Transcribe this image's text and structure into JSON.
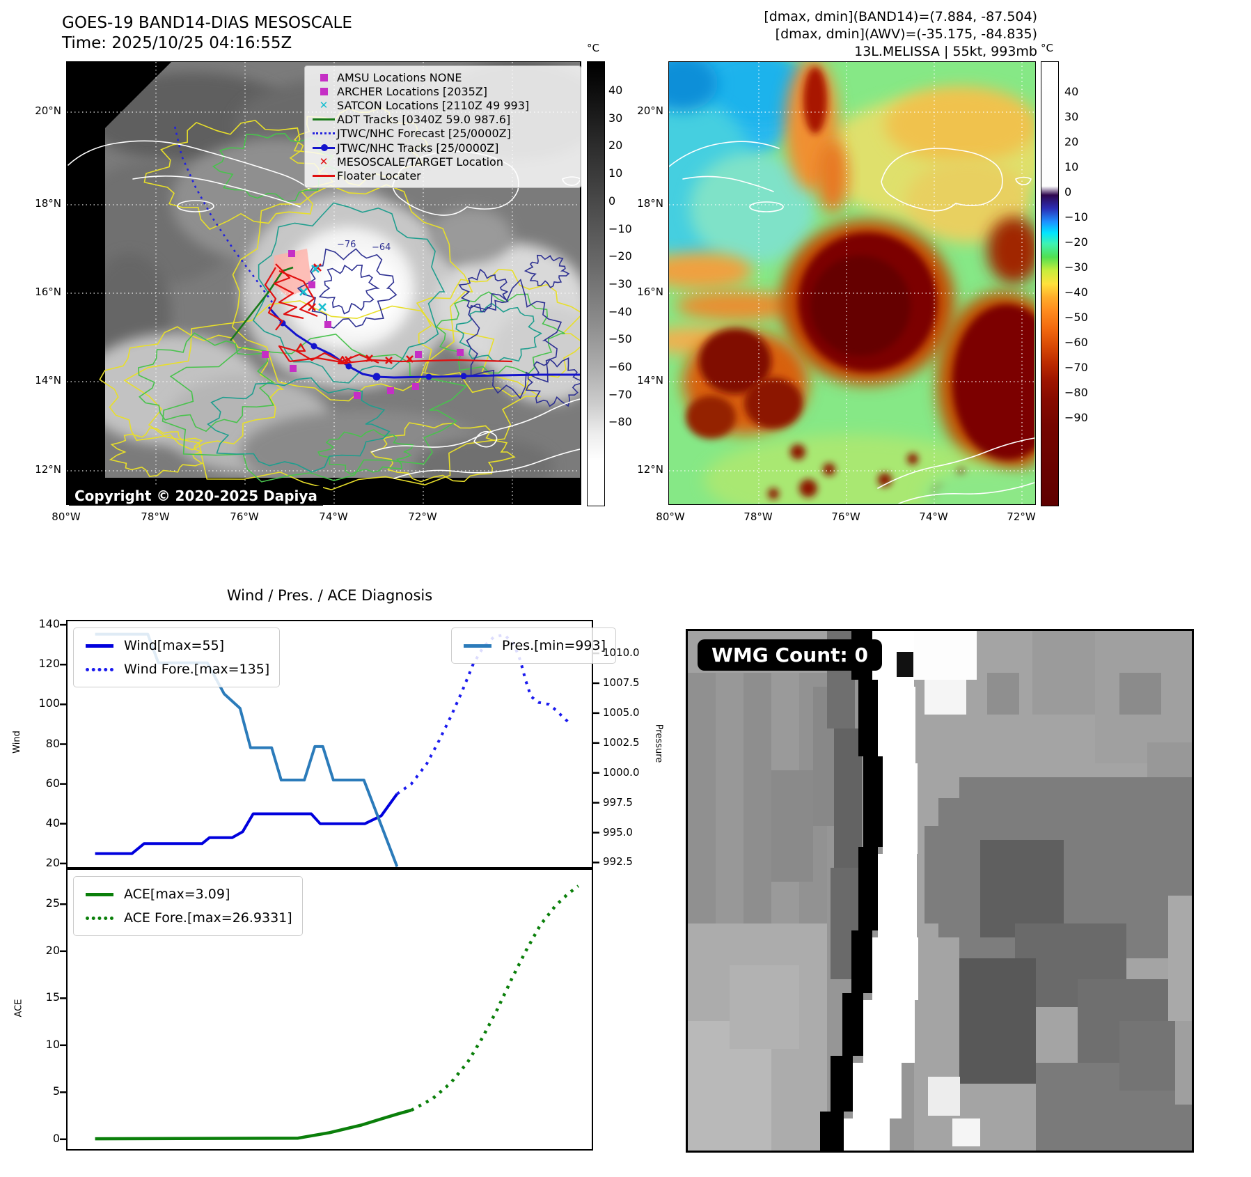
{
  "panel1": {
    "title_line1": "GOES-19 BAND14-DIAS MESOSCALE",
    "title_line2": "Time: 2025/10/25 04:16:55Z",
    "copyright": "Copyright © 2020-2025 Dapiya",
    "lat_ticks": [
      "20°N",
      "18°N",
      "16°N",
      "14°N",
      "12°N"
    ],
    "lon_ticks": [
      "80°W",
      "78°W",
      "76°W",
      "74°W",
      "72°W"
    ],
    "colorbar": {
      "unit": "°C",
      "ticks": [
        "40",
        "30",
        "20",
        "10",
        "0",
        "−10",
        "−20",
        "−30",
        "−40",
        "−50",
        "−60",
        "−70",
        "−80"
      ]
    },
    "contour_labels": [
      "−76",
      "−64"
    ],
    "legend": [
      {
        "marker": "sq-magenta",
        "label": "AMSU Locations NONE"
      },
      {
        "marker": "sq-magenta",
        "label": "ARCHER Locations [2035Z]"
      },
      {
        "marker": "x-cyan",
        "label": "SATCON Locations [2110Z 49 993]"
      },
      {
        "marker": "line-green",
        "label": "ADT Tracks [0340Z 59.0 987.6]"
      },
      {
        "marker": "dot-blue",
        "label": "JTWC/NHC Forecast [25/0000Z]"
      },
      {
        "marker": "linedot-blue",
        "label": "JTWC/NHC Tracks [25/0000Z]"
      },
      {
        "marker": "x-red",
        "label": "MESOSCALE/TARGET Location"
      },
      {
        "marker": "line-red",
        "label": "Floater Locater"
      }
    ]
  },
  "panel2": {
    "header_line1": "[dmax, dmin](BAND14)=(7.884, -87.504)",
    "header_line2": "[dmax, dmin](AWV)=(-35.175, -84.835)",
    "header_line3": "13L.MELISSA | 55kt, 993mb",
    "lat_ticks": [
      "20°N",
      "18°N",
      "16°N",
      "14°N",
      "12°N"
    ],
    "lon_ticks": [
      "80°W",
      "78°W",
      "76°W",
      "74°W",
      "72°W"
    ],
    "colorbar": {
      "unit": "°C",
      "ticks": [
        "40",
        "30",
        "20",
        "10",
        "0",
        "−10",
        "−20",
        "−30",
        "−40",
        "−50",
        "−60",
        "−70",
        "−80",
        "−90"
      ]
    }
  },
  "chart_data": [
    {
      "type": "line",
      "title": "Wind / Pres. / ACE Diagnosis",
      "ylabel_left": "Wind",
      "ylabel_right": "Pressure",
      "yticks_left": [
        "140",
        "120",
        "100",
        "80",
        "60",
        "40",
        "20"
      ],
      "yticks_left_values": [
        140,
        120,
        100,
        80,
        60,
        40,
        20
      ],
      "ylim_left": [
        17.5,
        142.5
      ],
      "yticks_right": [
        "1010.0",
        "1007.5",
        "1005.0",
        "1002.5",
        "1000.0",
        "997.5",
        "995.0",
        "992.5"
      ],
      "yticks_right_values": [
        1010.0,
        1007.5,
        1005.0,
        1002.5,
        1000.0,
        997.5,
        995.0,
        992.5
      ],
      "ylim_right": [
        992.0,
        1012.8
      ],
      "grid": false,
      "series": [
        {
          "name": "Wind[max=55]",
          "axis": "left",
          "style": "solid",
          "color": "#0000dd",
          "points": [
            [
              0.055,
              25
            ],
            [
              0.125,
              25
            ],
            [
              0.148,
              30
            ],
            [
              0.258,
              30
            ],
            [
              0.272,
              33
            ],
            [
              0.315,
              33
            ],
            [
              0.335,
              36
            ],
            [
              0.355,
              45
            ],
            [
              0.465,
              45
            ],
            [
              0.482,
              40
            ],
            [
              0.567,
              40
            ],
            [
              0.598,
              44
            ],
            [
              0.617,
              51
            ],
            [
              0.628,
              55
            ]
          ]
        },
        {
          "name": "Wind Fore.[max=135]",
          "axis": "left",
          "style": "dotted",
          "color": "#1a1aee",
          "points": [
            [
              0.628,
              55
            ],
            [
              0.655,
              60
            ],
            [
              0.684,
              70
            ],
            [
              0.708,
              82
            ],
            [
              0.732,
              95
            ],
            [
              0.752,
              107
            ],
            [
              0.772,
              120
            ],
            [
              0.792,
              129
            ],
            [
              0.812,
              134
            ],
            [
              0.832,
              135
            ],
            [
              0.85,
              130
            ],
            [
              0.862,
              122
            ],
            [
              0.872,
              112
            ],
            [
              0.882,
              104
            ],
            [
              0.896,
              101
            ],
            [
              0.916,
              100
            ],
            [
              0.93,
              97
            ],
            [
              0.945,
              93
            ],
            [
              0.958,
              90
            ]
          ]
        },
        {
          "name": "Pres.[min=993]",
          "axis": "right",
          "style": "solid",
          "color": "#2b7bba",
          "points": [
            [
              0.055,
              1011.6
            ],
            [
              0.155,
              1011.6
            ],
            [
              0.175,
              1009.2
            ],
            [
              0.268,
              1009.2
            ],
            [
              0.3,
              1006.6
            ],
            [
              0.33,
              1005.4
            ],
            [
              0.35,
              1002.1
            ],
            [
              0.39,
              1002.1
            ],
            [
              0.408,
              999.4
            ],
            [
              0.452,
              999.4
            ],
            [
              0.472,
              1002.2
            ],
            [
              0.487,
              1002.2
            ],
            [
              0.507,
              999.4
            ],
            [
              0.565,
              999.4
            ],
            [
              0.628,
              992.15
            ]
          ]
        }
      ]
    },
    {
      "type": "line",
      "ylabel_left": "ACE",
      "yticks_left": [
        "25",
        "20",
        "15",
        "10",
        "5",
        "0"
      ],
      "yticks_left_values": [
        25,
        20,
        15,
        10,
        5,
        0
      ],
      "ylim_left": [
        -1.2,
        28.8
      ],
      "grid": false,
      "series": [
        {
          "name": "ACE[max=3.09]",
          "axis": "left",
          "style": "solid",
          "color": "#0a7f0a",
          "points": [
            [
              0.055,
              0.05
            ],
            [
              0.44,
              0.12
            ],
            [
              0.5,
              0.7
            ],
            [
              0.56,
              1.5
            ],
            [
              0.6,
              2.2
            ],
            [
              0.63,
              2.7
            ],
            [
              0.655,
              3.09
            ]
          ]
        },
        {
          "name": "ACE Fore.[max=26.9331]",
          "axis": "left",
          "style": "dotted",
          "color": "#0a7f0a",
          "points": [
            [
              0.655,
              3.09
            ],
            [
              0.695,
              4.3
            ],
            [
              0.73,
              6.0
            ],
            [
              0.762,
              8.2
            ],
            [
              0.79,
              10.8
            ],
            [
              0.818,
              13.8
            ],
            [
              0.845,
              17.0
            ],
            [
              0.872,
              20.0
            ],
            [
              0.9,
              22.8
            ],
            [
              0.928,
              24.8
            ],
            [
              0.952,
              26.1
            ],
            [
              0.972,
              26.93
            ]
          ]
        }
      ]
    }
  ],
  "panel4": {
    "badge": "WMG Count: 0"
  }
}
